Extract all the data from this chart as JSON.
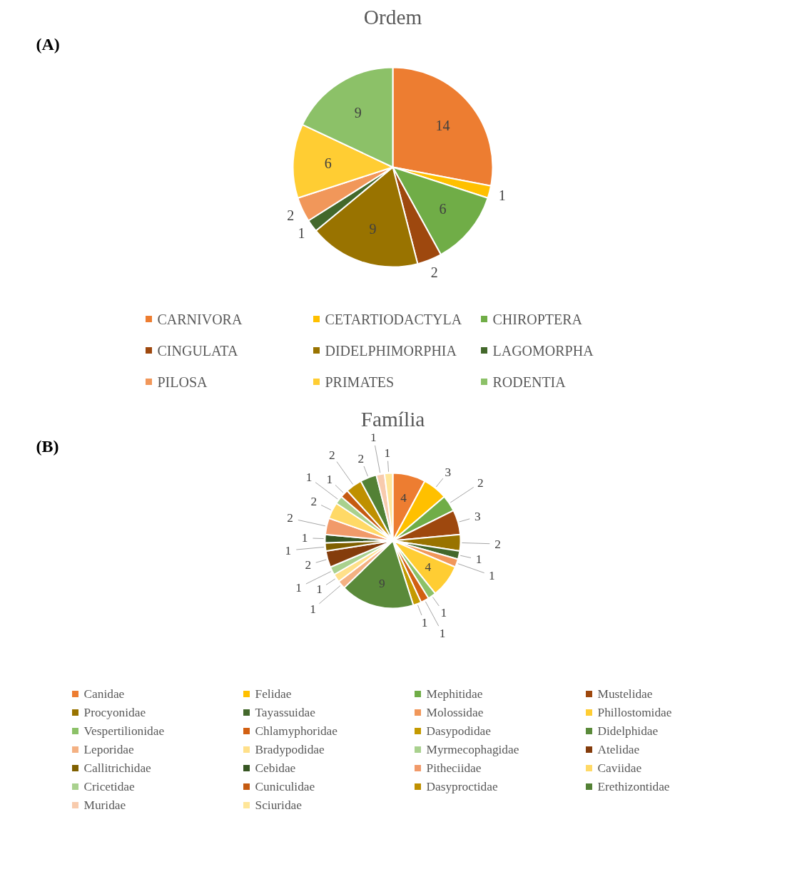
{
  "chart_data": [
    {
      "type": "pie",
      "title": "Ordem",
      "annotations": [
        "(A)"
      ],
      "data_labels": true,
      "legend": "bottom",
      "categories": [
        "CARNIVORA",
        "CETARTIODACTYLA",
        "CHIROPTERA",
        "CINGULATA",
        "DIDELPHIMORPHIA",
        "LAGOMORPHA",
        "PILOSA",
        "PRIMATES",
        "RODENTIA"
      ],
      "values": [
        14,
        1,
        6,
        2,
        9,
        1,
        2,
        6,
        9
      ],
      "colors": [
        "#ed7d31",
        "#ffc000",
        "#70ad47",
        "#9e480e",
        "#997300",
        "#43682b",
        "#f1975a",
        "#ffcd33",
        "#8cc168"
      ]
    },
    {
      "type": "pie",
      "title": "Família",
      "annotations": [
        "(B)"
      ],
      "data_labels": true,
      "legend": "bottom",
      "categories": [
        "Canidae",
        "Felidae",
        "Mephitidae",
        "Mustelidae",
        "Procyonidae",
        "Tayassuidae",
        "Molossidae",
        "Phillostomidae",
        "Vespertilionidae",
        "Chlamyphoridae",
        "Dasypodidae",
        "Didelphidae",
        "Leporidae",
        "Bradypodidae",
        "Myrmecophagidae",
        "Atelidae",
        "Callitrichidae",
        "Cebidae",
        "Pitheciidae",
        "Caviidae",
        "Cricetidae",
        "Cuniculidae",
        "Dasyproctidae",
        "Erethizontidae",
        "Muridae",
        "Sciuridae"
      ],
      "values": [
        4,
        3,
        2,
        3,
        2,
        1,
        1,
        4,
        1,
        1,
        1,
        9,
        1,
        1,
        1,
        2,
        1,
        1,
        2,
        2,
        1,
        1,
        2,
        2,
        1,
        1
      ],
      "colors": [
        "#ed7d31",
        "#ffc000",
        "#70ad47",
        "#9e480e",
        "#997300",
        "#43682b",
        "#f1975a",
        "#ffcd33",
        "#8cc168",
        "#d26012",
        "#c49a00",
        "#5a8a3a",
        "#f4b183",
        "#ffe08a",
        "#a9d18e",
        "#843c0c",
        "#7f6000",
        "#375623",
        "#f19a6a",
        "#ffd966",
        "#a9d18e",
        "#c55a11",
        "#bf9000",
        "#538135",
        "#f8cbad",
        "#ffe699"
      ]
    }
  ]
}
